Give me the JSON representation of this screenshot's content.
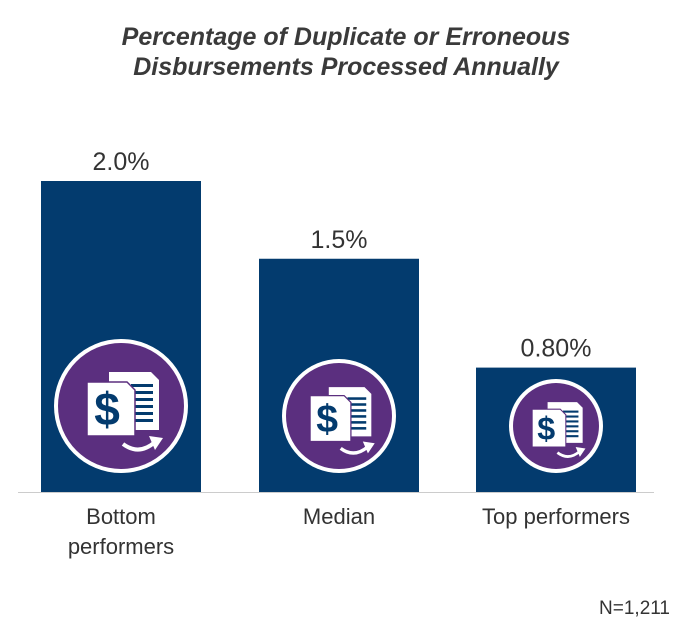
{
  "chart_data": {
    "type": "bar",
    "title_lines": [
      "Percentage of Duplicate or Erroneous",
      "Disbursements Processed Annually"
    ],
    "categories": [
      [
        "Bottom",
        "performers"
      ],
      [
        "Median"
      ],
      [
        "Top performers"
      ]
    ],
    "values": [
      2.0,
      1.5,
      0.8
    ],
    "data_labels": [
      "2.0%",
      "1.5%",
      "0.80%"
    ],
    "ylim": [
      0,
      2.0
    ],
    "grid": false,
    "legend": "none",
    "bar_color": "#033b6e",
    "badge_color": "#5b2f7f",
    "badge_icon": "dollar-document-icon"
  },
  "note": "N=1,211"
}
